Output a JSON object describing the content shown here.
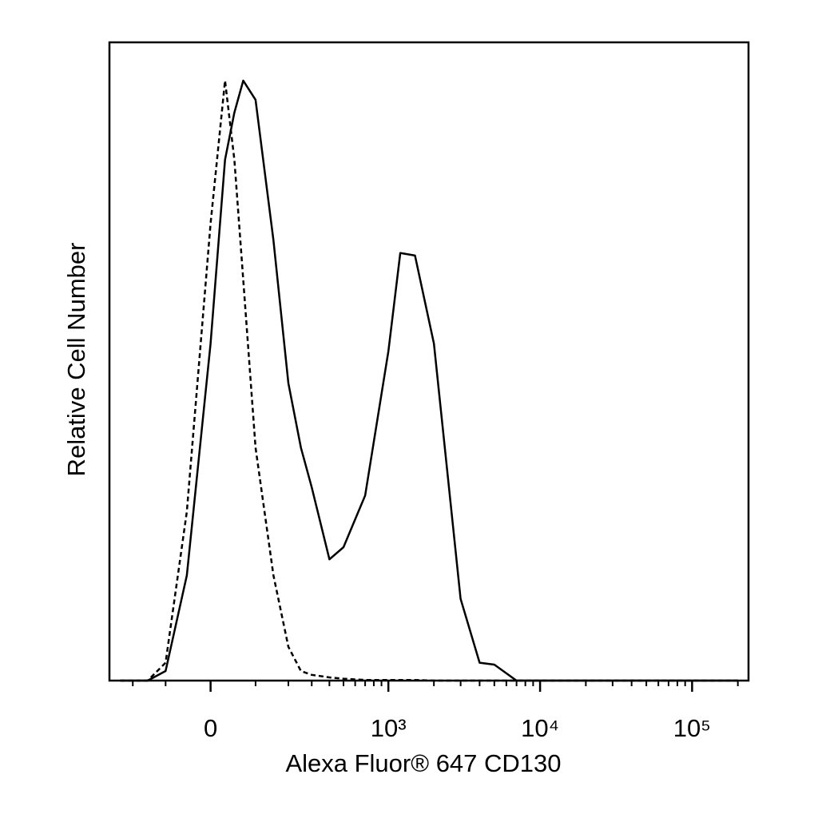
{
  "chart_data": {
    "type": "line",
    "xlabel": "Alexa Fluor® 647 CD130",
    "ylabel": "Relative Cell Number",
    "xscale": "asinh",
    "xscale_cofactor": 136,
    "xlim": [
      -300,
      235000
    ],
    "xticks": [
      0,
      {
        "value": 1000,
        "label": "10³"
      },
      {
        "value": 10000,
        "label": "10⁴"
      },
      {
        "value": 100000,
        "label": "10⁵"
      }
    ],
    "xminor_ticks": [
      -200,
      -100,
      100,
      200,
      300,
      400,
      500,
      600,
      700,
      800,
      900,
      2000,
      3000,
      4000,
      5000,
      6000,
      7000,
      8000,
      9000,
      20000,
      30000,
      40000,
      50000,
      60000,
      70000,
      80000,
      90000,
      200000
    ],
    "ylim": [
      0,
      100
    ],
    "x": [
      -250,
      -200,
      -150,
      -100,
      -50,
      0,
      30,
      50,
      70,
      100,
      150,
      200,
      250,
      300,
      400,
      500,
      700,
      1000,
      1200,
      1500,
      2000,
      3000,
      4000,
      5000,
      7000,
      10000,
      20000,
      50000,
      100000,
      200000
    ],
    "series": [
      {
        "color": "#000000",
        "dashed": false,
        "values": [
          0,
          0,
          0,
          1.5,
          16.5,
          52.8,
          81.6,
          89,
          94,
          91,
          69,
          46.6,
          36.5,
          30.3,
          19,
          20.9,
          29,
          51.6,
          67,
          66.6,
          52.8,
          12.8,
          2.8,
          2.5,
          0,
          0,
          0,
          0,
          0,
          0
        ]
      },
      {
        "color": "#000000",
        "dashed": true,
        "values": [
          0,
          0,
          0,
          2.8,
          26.5,
          71.6,
          94,
          81.6,
          62.8,
          36.5,
          16.5,
          5.3,
          1.5,
          0.9,
          0.5,
          0.3,
          0.1,
          0.1,
          0.1,
          0.1,
          0,
          0,
          0,
          0,
          0,
          0,
          0,
          0,
          0,
          0
        ]
      }
    ]
  }
}
